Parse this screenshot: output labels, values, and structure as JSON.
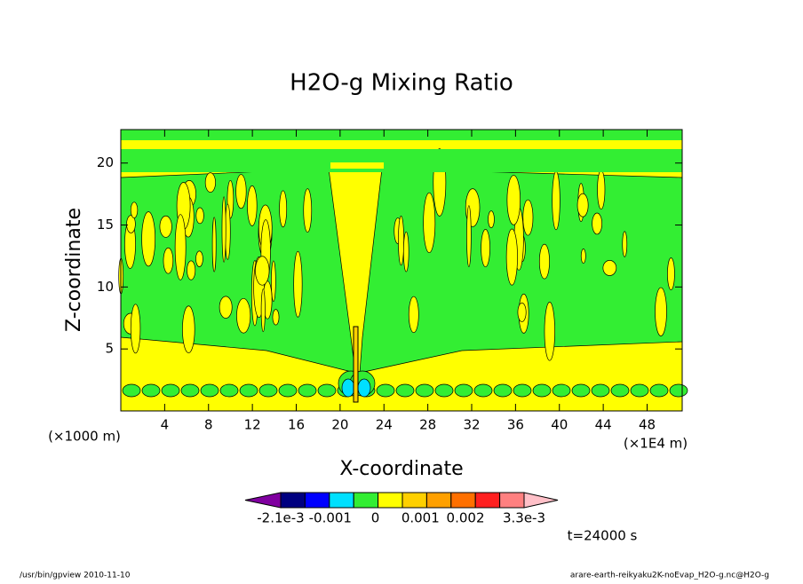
{
  "chart_data": {
    "type": "contour",
    "title": "H2O-g Mixing Ratio",
    "x_label": "X-coordinate",
    "y_label": "Z-coordinate",
    "x_unit": "(×1E4 m)",
    "y_unit": "(×1000 m)",
    "xlim": [
      0,
      51.2
    ],
    "ylim": [
      0,
      22.7
    ],
    "xticks": [
      4,
      8,
      12,
      16,
      20,
      24,
      28,
      32,
      36,
      40,
      44,
      48
    ],
    "yticks": [
      5,
      10,
      15,
      20
    ],
    "colorbar": {
      "lim": [
        -0.0021,
        0.0033
      ],
      "colors": [
        "#8000a0",
        "#000080",
        "#0000ff",
        "#00e0ff",
        "#33ee33",
        "#ffff00",
        "#ffd000",
        "#ffa000",
        "#ff7000",
        "#ff2020",
        "#ff8080",
        "#ffc0c8"
      ],
      "ticks": [
        {
          "value": -0.0021,
          "label": "-2.1e-3"
        },
        {
          "value": -0.001,
          "label": "-0.001"
        },
        0,
        {
          "value": 0.001,
          "label": "0.001"
        },
        {
          "value": 0.002,
          "label": "0.002"
        },
        {
          "value": 0.0033,
          "label": "3.3e-3"
        }
      ]
    },
    "time_label": "t=24000 s",
    "footer_left": "/usr/bin/gpview  2010-11-10",
    "footer_right": "arare-earth-reikyaku2K-noEvap_H2O-g.nc@H2O-g"
  }
}
